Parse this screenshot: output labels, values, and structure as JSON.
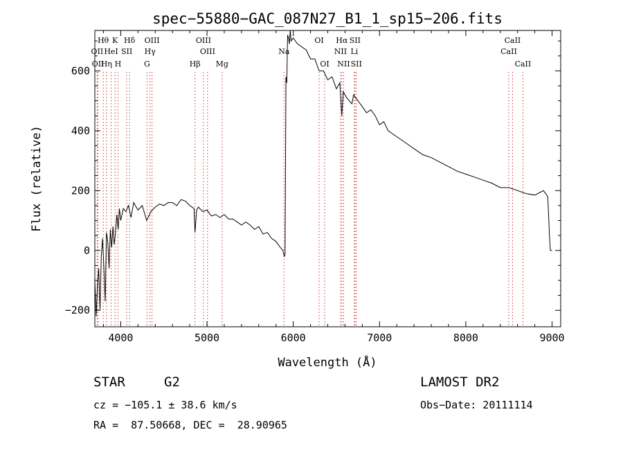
{
  "chart_data": {
    "type": "line",
    "title": "spec−55880−GAC_087N27_B1_1_sp15−206.fits",
    "xlabel": "Wavelength (Å)",
    "ylabel": "Flux (relative)",
    "xlim": [
      3700,
      9100
    ],
    "ylim": [
      -255,
      735
    ],
    "xticks": [
      4000,
      5000,
      6000,
      7000,
      8000,
      9000
    ],
    "xtick_labels": [
      "4000",
      "5000",
      "6000",
      "7000",
      "8000",
      "9000"
    ],
    "yticks": [
      -200,
      0,
      200,
      400,
      600
    ],
    "ytick_labels": [
      "−200",
      "0",
      "200",
      "400",
      "600"
    ],
    "grid": false,
    "series": [
      {
        "x": [
          3700,
          3715,
          3730,
          3745,
          3760,
          3775,
          3790,
          3805,
          3820,
          3835,
          3850,
          3865,
          3880,
          3895,
          3910,
          3925,
          3940,
          3955,
          3970,
          3985,
          4000,
          4030,
          4060,
          4090,
          4120,
          4150,
          4200,
          4250,
          4300,
          4350,
          4400,
          4450,
          4500,
          4550,
          4600,
          4650,
          4700,
          4750,
          4800,
          4850,
          4861,
          4880,
          4900,
          4950,
          5000,
          5050,
          5100,
          5150,
          5200,
          5250,
          5300,
          5350,
          5400,
          5450,
          5500,
          5550,
          5600,
          5650,
          5700,
          5750,
          5800,
          5850,
          5880,
          5895,
          5905,
          5915,
          5925,
          5935,
          5945,
          5955,
          5965,
          5975,
          6000,
          6050,
          6100,
          6150,
          6200,
          6250,
          6300,
          6350,
          6400,
          6450,
          6500,
          6540,
          6563,
          6580,
          6620,
          6680,
          6700,
          6750,
          6800,
          6850,
          6900,
          6950,
          7000,
          7050,
          7100,
          7200,
          7300,
          7400,
          7500,
          7600,
          7700,
          7800,
          7900,
          8000,
          8100,
          8200,
          8300,
          8400,
          8500,
          8600,
          8700,
          8800,
          8900,
          8950,
          8970,
          8980,
          9000
        ],
        "y": [
          -100,
          -220,
          -120,
          -60,
          -200,
          -20,
          40,
          -60,
          -170,
          60,
          30,
          -60,
          70,
          10,
          80,
          20,
          60,
          120,
          70,
          140,
          100,
          140,
          130,
          150,
          110,
          160,
          135,
          150,
          100,
          130,
          145,
          155,
          150,
          160,
          160,
          150,
          170,
          165,
          150,
          140,
          60,
          135,
          145,
          130,
          135,
          115,
          120,
          110,
          120,
          105,
          105,
          95,
          85,
          95,
          85,
          70,
          80,
          55,
          60,
          40,
          30,
          10,
          0,
          -20,
          -15,
          580,
          560,
          720,
          710,
          690,
          740,
          700,
          710,
          690,
          680,
          670,
          640,
          640,
          600,
          600,
          570,
          580,
          540,
          560,
          450,
          530,
          510,
          490,
          520,
          500,
          480,
          460,
          470,
          450,
          420,
          430,
          400,
          380,
          360,
          340,
          320,
          310,
          295,
          280,
          265,
          255,
          245,
          235,
          225,
          210,
          210,
          200,
          190,
          185,
          200,
          180,
          50,
          0,
          0
        ],
        "color": "#000000"
      }
    ],
    "line_markers": [
      {
        "label": "Hθ",
        "x": 3798,
        "row": 1
      },
      {
        "label": "K",
        "x": 3934,
        "row": 1
      },
      {
        "label": "Hδ",
        "x": 4102,
        "row": 1
      },
      {
        "label": "OIII",
        "x": 4363,
        "row": 1
      },
      {
        "label": "OIII",
        "x": 4959,
        "row": 1
      },
      {
        "label": "OI",
        "x": 6300,
        "row": 1
      },
      {
        "label": "Hα",
        "x": 6563,
        "row": 1
      },
      {
        "label": "SII",
        "x": 6716,
        "row": 1
      },
      {
        "label": "CaII",
        "x": 8542,
        "row": 1
      },
      {
        "label": "OII",
        "x": 3727,
        "row": 2
      },
      {
        "label": "HeI",
        "x": 3889,
        "row": 2
      },
      {
        "label": "SII",
        "x": 4070,
        "row": 2
      },
      {
        "label": "Hγ",
        "x": 4340,
        "row": 2
      },
      {
        "label": "OIII",
        "x": 5007,
        "row": 2
      },
      {
        "label": "Na",
        "x": 5893,
        "row": 2
      },
      {
        "label": "NII",
        "x": 6548,
        "row": 2
      },
      {
        "label": "Li",
        "x": 6708,
        "row": 2
      },
      {
        "label": "CaII",
        "x": 8498,
        "row": 2
      },
      {
        "label": "OII",
        "x": 3737,
        "row": 3
      },
      {
        "label": "Hη",
        "x": 3835,
        "row": 3
      },
      {
        "label": "H",
        "x": 3968,
        "row": 3
      },
      {
        "label": "G",
        "x": 4305,
        "row": 3
      },
      {
        "label": "Hβ",
        "x": 4861,
        "row": 3
      },
      {
        "label": "Mg",
        "x": 5175,
        "row": 3
      },
      {
        "label": "OI",
        "x": 6364,
        "row": 3
      },
      {
        "label": "NII",
        "x": 6584,
        "row": 3
      },
      {
        "label": "SII",
        "x": 6731,
        "row": 3
      },
      {
        "label": "CaII",
        "x": 8662,
        "row": 3
      }
    ]
  },
  "info": {
    "object_type": "STAR",
    "subclass": "G2",
    "survey": "LAMOST DR2",
    "redshift_line": "cz = −105.1 ± 38.6 km/s",
    "obs_date_line": "Obs−Date: 20111114",
    "coords_line": "RA =  87.50668, DEC =  28.90965"
  }
}
